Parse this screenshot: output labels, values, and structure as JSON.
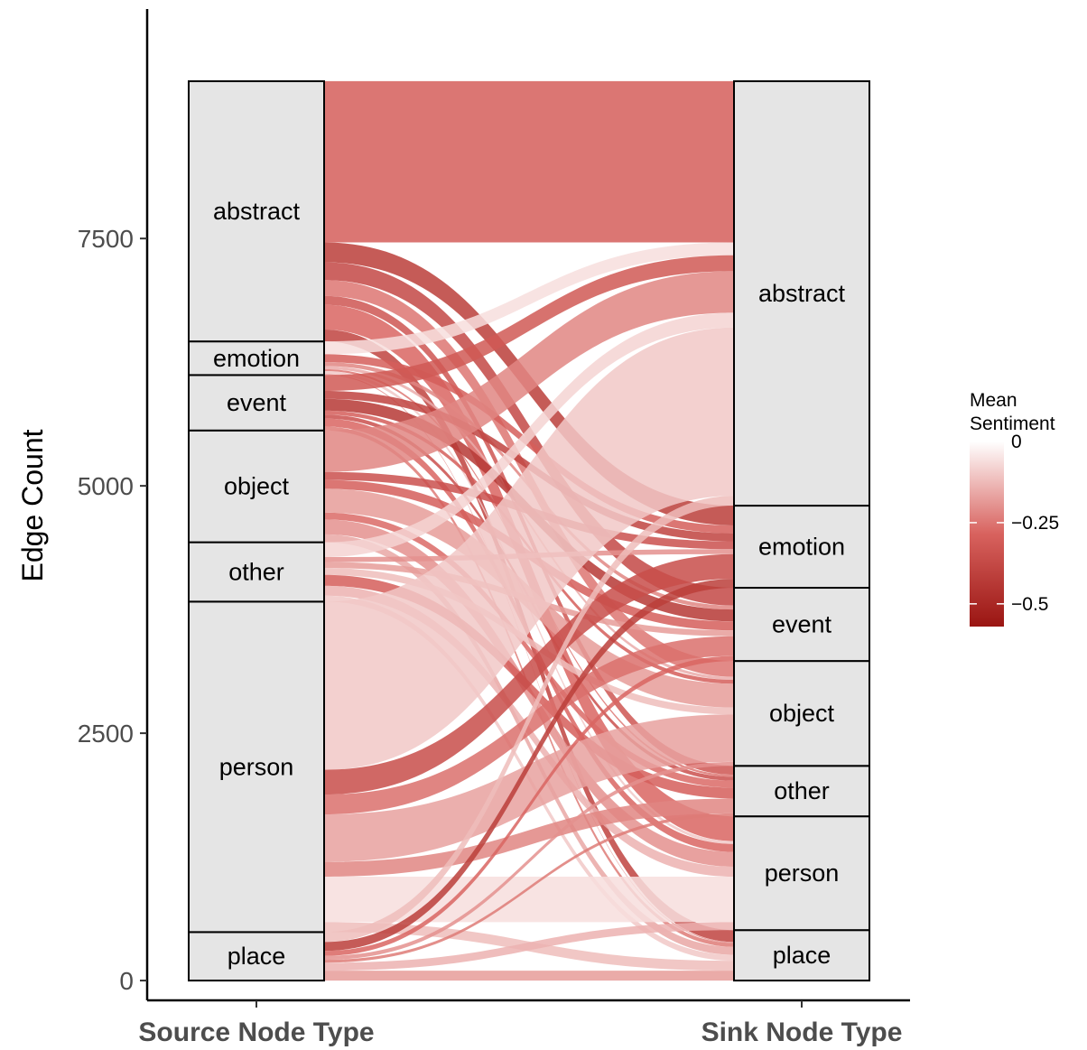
{
  "chart_data": {
    "type": "alluvial",
    "xlabel": "",
    "ylabel": "Edge Count",
    "ylim": [
      -200,
      9500
    ],
    "y_ticks": [
      0,
      2500,
      5000,
      7500
    ],
    "y_tick_labels": [
      "0",
      "2500",
      "5000",
      "7500"
    ],
    "axes": [
      "Source Node Type",
      "Sink Node Type"
    ],
    "grid": false,
    "legend": {
      "title": "Mean\nSentiment",
      "position": "right",
      "color_low": "#9a1512",
      "color_high": "#ffffff",
      "range": [
        -0.57,
        0
      ],
      "ticks": [
        0,
        -0.25,
        -0.5
      ],
      "tick_labels": [
        "0",
        "−0.25",
        "−0.5"
      ]
    },
    "source_nodes": [
      {
        "name": "place",
        "value": 490
      },
      {
        "name": "person",
        "value": 3340
      },
      {
        "name": "other",
        "value": 600
      },
      {
        "name": "object",
        "value": 1130
      },
      {
        "name": "event",
        "value": 560
      },
      {
        "name": "emotion",
        "value": 340
      },
      {
        "name": "abstract",
        "value": 2630
      }
    ],
    "sink_nodes": [
      {
        "name": "place",
        "value": 510
      },
      {
        "name": "person",
        "value": 1150
      },
      {
        "name": "other",
        "value": 510
      },
      {
        "name": "object",
        "value": 1060
      },
      {
        "name": "event",
        "value": 740
      },
      {
        "name": "emotion",
        "value": 830
      },
      {
        "name": "abstract",
        "value": 4290
      }
    ],
    "flows": [
      {
        "source": "abstract",
        "sink": "abstract",
        "value": 1630,
        "sentiment": -0.3
      },
      {
        "source": "abstract",
        "sink": "emotion",
        "value": 200,
        "sentiment": -0.42
      },
      {
        "source": "abstract",
        "sink": "event",
        "value": 180,
        "sentiment": -0.38
      },
      {
        "source": "abstract",
        "sink": "object",
        "value": 160,
        "sentiment": -0.25
      },
      {
        "source": "abstract",
        "sink": "other",
        "value": 90,
        "sentiment": -0.33
      },
      {
        "source": "abstract",
        "sink": "person",
        "value": 250,
        "sentiment": -0.28
      },
      {
        "source": "abstract",
        "sink": "place",
        "value": 120,
        "sentiment": -0.4
      },
      {
        "source": "emotion",
        "sink": "abstract",
        "value": 130,
        "sentiment": -0.06
      },
      {
        "source": "emotion",
        "sink": "emotion",
        "value": 80,
        "sentiment": -0.3
      },
      {
        "source": "emotion",
        "sink": "event",
        "value": 40,
        "sentiment": -0.22
      },
      {
        "source": "emotion",
        "sink": "object",
        "value": 30,
        "sentiment": -0.15
      },
      {
        "source": "emotion",
        "sink": "other",
        "value": 20,
        "sentiment": -0.25
      },
      {
        "source": "emotion",
        "sink": "person",
        "value": 30,
        "sentiment": -0.1
      },
      {
        "source": "emotion",
        "sink": "place",
        "value": 10,
        "sentiment": -0.2
      },
      {
        "source": "event",
        "sink": "abstract",
        "value": 160,
        "sentiment": -0.32
      },
      {
        "source": "event",
        "sink": "emotion",
        "value": 80,
        "sentiment": -0.4
      },
      {
        "source": "event",
        "sink": "event",
        "value": 120,
        "sentiment": -0.44
      },
      {
        "source": "event",
        "sink": "object",
        "value": 40,
        "sentiment": -0.3
      },
      {
        "source": "event",
        "sink": "other",
        "value": 40,
        "sentiment": -0.35
      },
      {
        "source": "event",
        "sink": "person",
        "value": 80,
        "sentiment": -0.28
      },
      {
        "source": "event",
        "sink": "place",
        "value": 40,
        "sentiment": -0.24
      },
      {
        "source": "object",
        "sink": "abstract",
        "value": 420,
        "sentiment": -0.22
      },
      {
        "source": "object",
        "sink": "emotion",
        "value": 80,
        "sentiment": -0.35
      },
      {
        "source": "object",
        "sink": "event",
        "value": 90,
        "sentiment": -0.3
      },
      {
        "source": "object",
        "sink": "object",
        "value": 240,
        "sentiment": -0.18
      },
      {
        "source": "object",
        "sink": "other",
        "value": 70,
        "sentiment": -0.27
      },
      {
        "source": "object",
        "sink": "person",
        "value": 150,
        "sentiment": -0.2
      },
      {
        "source": "object",
        "sink": "place",
        "value": 80,
        "sentiment": -0.16
      },
      {
        "source": "other",
        "sink": "abstract",
        "value": 150,
        "sentiment": -0.08
      },
      {
        "source": "other",
        "sink": "emotion",
        "value": 50,
        "sentiment": -0.2
      },
      {
        "source": "other",
        "sink": "event",
        "value": 60,
        "sentiment": -0.18
      },
      {
        "source": "other",
        "sink": "object",
        "value": 70,
        "sentiment": -0.12
      },
      {
        "source": "other",
        "sink": "other",
        "value": 110,
        "sentiment": -0.3
      },
      {
        "source": "other",
        "sink": "person",
        "value": 100,
        "sentiment": -0.14
      },
      {
        "source": "other",
        "sink": "place",
        "value": 60,
        "sentiment": -0.1
      },
      {
        "source": "person",
        "sink": "abstract",
        "value": 1700,
        "sentiment": -0.1
      },
      {
        "source": "person",
        "sink": "emotion",
        "value": 250,
        "sentiment": -0.36
      },
      {
        "source": "person",
        "sink": "event",
        "value": 200,
        "sentiment": -0.26
      },
      {
        "source": "person",
        "sink": "object",
        "value": 480,
        "sentiment": -0.17
      },
      {
        "source": "person",
        "sink": "other",
        "value": 150,
        "sentiment": -0.22
      },
      {
        "source": "person",
        "sink": "person",
        "value": 460,
        "sentiment": -0.06
      },
      {
        "source": "person",
        "sink": "place",
        "value": 100,
        "sentiment": -0.12
      },
      {
        "source": "place",
        "sink": "abstract",
        "value": 100,
        "sentiment": -0.12
      },
      {
        "source": "place",
        "sink": "emotion",
        "value": 90,
        "sentiment": -0.42
      },
      {
        "source": "place",
        "sink": "event",
        "value": 50,
        "sentiment": -0.28
      },
      {
        "source": "place",
        "sink": "object",
        "value": 40,
        "sentiment": -0.2
      },
      {
        "source": "place",
        "sink": "other",
        "value": 30,
        "sentiment": -0.24
      },
      {
        "source": "place",
        "sink": "person",
        "value": 80,
        "sentiment": -0.14
      },
      {
        "source": "place",
        "sink": "place",
        "value": 100,
        "sentiment": -0.18
      }
    ]
  }
}
